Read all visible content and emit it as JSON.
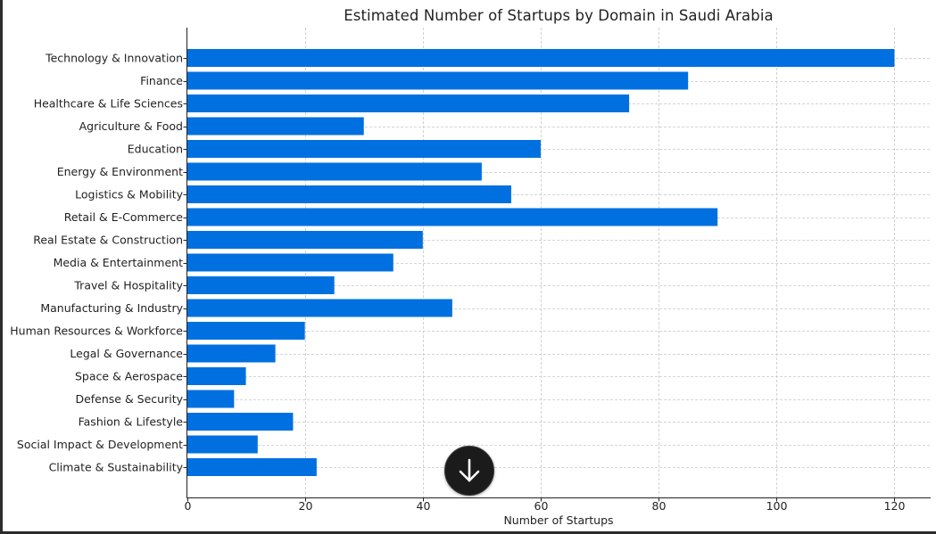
{
  "chart_data": {
    "type": "bar",
    "orientation": "horizontal",
    "title": "Estimated Number of Startups by Domain in Saudi Arabia",
    "xlabel": "Number of Startups",
    "ylabel": "",
    "xlim": [
      0,
      126
    ],
    "xticks": [
      0,
      20,
      40,
      60,
      80,
      100,
      120
    ],
    "grid": true,
    "bar_color": "#0070e0",
    "categories": [
      "Technology & Innovation",
      "Finance",
      "Healthcare & Life Sciences",
      "Agriculture & Food",
      "Education",
      "Energy & Environment",
      "Logistics & Mobility",
      "Retail & E-Commerce",
      "Real Estate & Construction",
      "Media & Entertainment",
      "Travel & Hospitality",
      "Manufacturing & Industry",
      "Human Resources & Workforce",
      "Legal & Governance",
      "Space & Aerospace",
      "Defense & Security",
      "Fashion & Lifestyle",
      "Social Impact & Development",
      "Climate & Sustainability"
    ],
    "values": [
      120,
      85,
      75,
      30,
      60,
      50,
      55,
      90,
      40,
      35,
      25,
      45,
      20,
      15,
      10,
      8,
      18,
      12,
      22
    ]
  },
  "overlay": {
    "scroll_button_icon": "arrow-down-icon"
  }
}
